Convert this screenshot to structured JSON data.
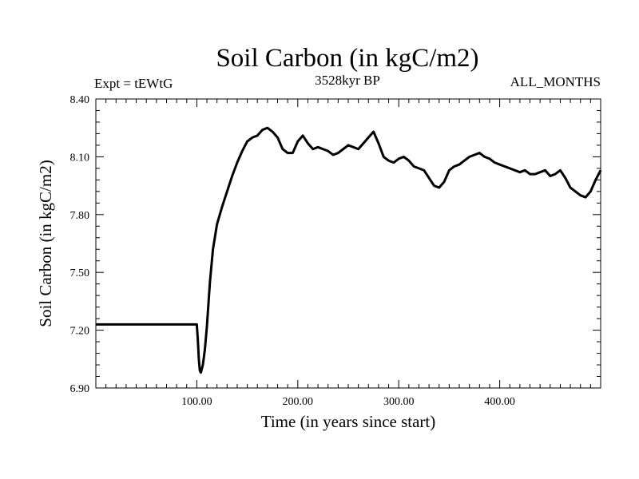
{
  "chart_data": {
    "type": "line",
    "title": "Soil Carbon (in kgC/m2)",
    "subtitle_left": "Expt = tEWtG",
    "subtitle_center": "3528kyr BP",
    "subtitle_right": "ALL_MONTHS",
    "xlabel": "Time (in years since start)",
    "ylabel": "Soil Carbon (in kgC/m2)",
    "xlim": [
      0,
      500
    ],
    "ylim": [
      6.9,
      8.4
    ],
    "xticks": [
      100,
      200,
      300,
      400
    ],
    "xtick_labels": [
      "100.00",
      "200.00",
      "300.00",
      "400.00"
    ],
    "yticks": [
      6.9,
      7.2,
      7.5,
      7.8,
      8.1,
      8.4
    ],
    "ytick_labels": [
      "6.90",
      "7.20",
      "7.50",
      "7.80",
      "8.10",
      "8.40"
    ],
    "grid": false,
    "series": [
      {
        "name": "Soil Carbon",
        "x": [
          0,
          100,
          101,
          102,
          103,
          104,
          106,
          108,
          110,
          113,
          116,
          120,
          125,
          130,
          135,
          140,
          145,
          150,
          155,
          160,
          165,
          170,
          175,
          180,
          185,
          190,
          195,
          200,
          205,
          210,
          215,
          220,
          225,
          230,
          235,
          240,
          245,
          250,
          255,
          260,
          265,
          270,
          275,
          280,
          285,
          290,
          295,
          300,
          305,
          310,
          315,
          320,
          325,
          330,
          335,
          340,
          345,
          350,
          355,
          360,
          365,
          370,
          375,
          380,
          385,
          390,
          395,
          400,
          405,
          410,
          415,
          420,
          425,
          430,
          435,
          440,
          445,
          450,
          455,
          460,
          465,
          470,
          475,
          480,
          485,
          490,
          495,
          500
        ],
        "values": [
          7.23,
          7.23,
          7.15,
          7.05,
          6.99,
          6.98,
          7.02,
          7.1,
          7.22,
          7.45,
          7.62,
          7.75,
          7.84,
          7.92,
          8.0,
          8.07,
          8.13,
          8.18,
          8.2,
          8.21,
          8.24,
          8.25,
          8.23,
          8.2,
          8.14,
          8.12,
          8.12,
          8.18,
          8.21,
          8.17,
          8.14,
          8.15,
          8.14,
          8.13,
          8.11,
          8.12,
          8.14,
          8.16,
          8.15,
          8.14,
          8.17,
          8.2,
          8.23,
          8.17,
          8.1,
          8.08,
          8.07,
          8.09,
          8.1,
          8.08,
          8.05,
          8.04,
          8.03,
          7.99,
          7.95,
          7.94,
          7.97,
          8.03,
          8.05,
          8.06,
          8.08,
          8.1,
          8.11,
          8.12,
          8.1,
          8.09,
          8.07,
          8.06,
          8.05,
          8.04,
          8.03,
          8.02,
          8.03,
          8.01,
          8.01,
          8.02,
          8.03,
          8.0,
          8.01,
          8.03,
          7.99,
          7.94,
          7.92,
          7.9,
          7.89,
          7.92,
          7.98,
          8.03
        ]
      }
    ]
  }
}
